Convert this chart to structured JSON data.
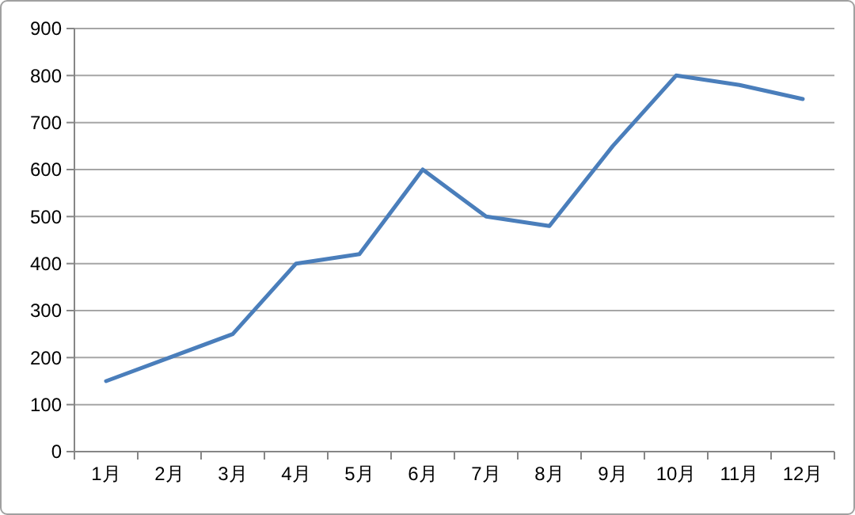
{
  "chart_data": {
    "type": "line",
    "categories": [
      "1月",
      "2月",
      "3月",
      "4月",
      "5月",
      "6月",
      "7月",
      "8月",
      "9月",
      "10月",
      "11月",
      "12月"
    ],
    "series": [
      {
        "color": "#4a7ebb",
        "values": [
          150,
          200,
          250,
          400,
          420,
          600,
          500,
          480,
          650,
          800,
          780,
          750
        ]
      }
    ],
    "ylim": [
      0,
      900
    ],
    "yticks": [
      0,
      100,
      200,
      300,
      400,
      500,
      600,
      700,
      800,
      900
    ],
    "grid": "y",
    "marker": "none",
    "line_style": "solid"
  }
}
